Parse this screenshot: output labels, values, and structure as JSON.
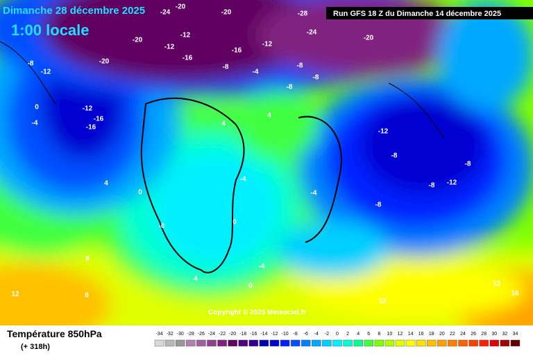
{
  "header": {
    "date": "Dimanche 28 décembre 2025",
    "time": "1:00 locale",
    "run": "Run GFS 18 Z du Dimanche 14 décembre 2025"
  },
  "copyright": "Copyright © 2025 Meteociel.fr",
  "footer": {
    "title": "Température 850hPa",
    "lead": "(+ 318h)"
  },
  "scale": {
    "values": [
      -34,
      -32,
      -30,
      -28,
      -26,
      -24,
      -22,
      -20,
      -18,
      -16,
      -14,
      -12,
      -10,
      -8,
      -6,
      -4,
      -2,
      0,
      2,
      4,
      6,
      8,
      10,
      12,
      14,
      16,
      18,
      20,
      22,
      24,
      26,
      28,
      30,
      32,
      34
    ],
    "colors": [
      "#d8d8d8",
      "#b8b8b8",
      "#989898",
      "#b080b0",
      "#a060a0",
      "#904090",
      "#802080",
      "#600060",
      "#500080",
      "#300090",
      "#0000a8",
      "#0000d0",
      "#0020ff",
      "#0050ff",
      "#0080ff",
      "#00a8ff",
      "#00d0ff",
      "#00f0ff",
      "#00ffd0",
      "#00ff90",
      "#40ff40",
      "#80ff00",
      "#b0ff00",
      "#e0ff00",
      "#ffff00",
      "#ffe000",
      "#ffc000",
      "#ffa000",
      "#ff8000",
      "#ff6000",
      "#ff4000",
      "#ff2000",
      "#e00000",
      "#a00000",
      "#600000"
    ]
  },
  "contour_labels": [
    "-20",
    "-20",
    "-28",
    "-24",
    "-20",
    "-24",
    "-20",
    "-12",
    "-12",
    "-16",
    "-20",
    "-12",
    "-8",
    "-12",
    "-16",
    "-16",
    "0",
    "-4",
    "-16",
    "-12",
    "-8",
    "-4",
    "-8",
    "-8",
    "-8",
    "-12",
    "-8",
    "-8",
    "-8",
    "-12",
    "-8",
    "-4",
    "0",
    "-4",
    "4",
    "4",
    "8",
    "12",
    "12",
    "12",
    "16",
    "0",
    "-0",
    "4",
    "-4",
    "0",
    "8",
    "4"
  ]
}
